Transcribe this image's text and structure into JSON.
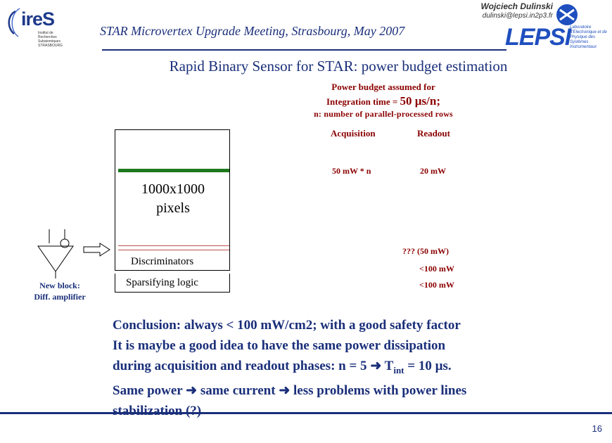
{
  "header": {
    "meeting": "STAR Microvertex Upgrade Meeting, Strasbourg, May 2007",
    "author": "Wojciech Dulinski",
    "email": "dulinski@lepsi.in2p3.fr",
    "logo_left": "ireS",
    "logo_left_sub": "Institut de Recherches Subatomiques STRASBOURG",
    "logo_right": "LEPSI",
    "logo_right_sub": "Laboratoire d'Electronique et de Physique des Systèmes Instrumentaux"
  },
  "title": "Rapid Binary Sensor for STAR: power budget estimation",
  "budget": {
    "line1": "Power budget assumed for",
    "line2_prefix": "Integration time = ",
    "line2_value": "50 µs/n;",
    "line3": "n: number of parallel-processed rows"
  },
  "table": {
    "acq_header": "Acquisition",
    "read_header": "Readout",
    "acq_value": "50 mW * n",
    "read_value": "20 mW",
    "q_value": "??? (50 mW)",
    "disc_value": "<100 mW",
    "spars_value": "<100 mW"
  },
  "diagram": {
    "matrix_line1": "1000x1000",
    "matrix_line2": "pixels",
    "discriminators": "Discriminators",
    "sparsifying": "Sparsifying logic",
    "new_block_line1": "New block:",
    "new_block_line2": "Diff. amplifier"
  },
  "conclusion": {
    "l1": "Conclusion: always < 100 mW/cm2; with a good safety factor",
    "l2": "It is maybe a good idea to have the same power dissipation",
    "l3a": "during acquisition and readout phases: n = 5 ",
    "l3b": " T",
    "l3sub": "int",
    "l3c": " = 10 µs.",
    "l4a": "Same power ",
    "l4b": " same current ",
    "l4c": " less problems with power lines",
    "l5": "stabilization (?)"
  },
  "page_number": "16",
  "colors": {
    "navy": "#1a2f7a",
    "dark_red": "#8b0000",
    "green": "#1e7a1e",
    "pink_line": "#c05050"
  }
}
